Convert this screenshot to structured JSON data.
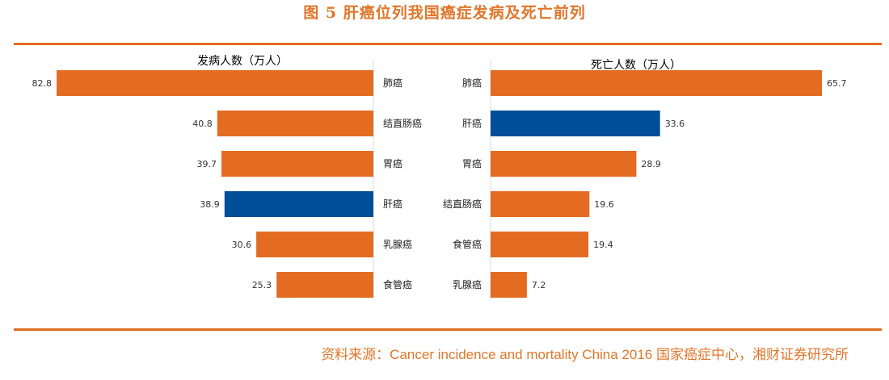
{
  "title": "图 5 肝癌位列我国癌症发病及死亡前列",
  "source": "资料来源：Cancer incidence and mortality China 2016 国家癌症中心，湘财证券研究所",
  "colors": {
    "bar": "#E36C22",
    "highlight": "#004E97",
    "rule": "#E36C22",
    "text_accent": "#E0762A"
  },
  "chart_data": [
    {
      "type": "bar",
      "orientation": "horizontal",
      "direction": "right-to-left",
      "title": "发病人数（万人）",
      "categories": [
        "肺癌",
        "结直肠癌",
        "胃癌",
        "肝癌",
        "乳腺癌",
        "食管癌"
      ],
      "values": [
        82.8,
        40.8,
        39.7,
        38.9,
        30.6,
        25.3
      ],
      "highlight": "肝癌",
      "xlim": [
        0,
        90
      ]
    },
    {
      "type": "bar",
      "orientation": "horizontal",
      "direction": "left-to-right",
      "title": "死亡人数（万人）",
      "categories": [
        "肺癌",
        "肝癌",
        "胃癌",
        "结直肠癌",
        "食管癌",
        "乳腺癌"
      ],
      "values": [
        65.7,
        33.6,
        28.9,
        19.6,
        19.4,
        7.2
      ],
      "highlight": "肝癌",
      "xlim": [
        0,
        70
      ]
    }
  ]
}
